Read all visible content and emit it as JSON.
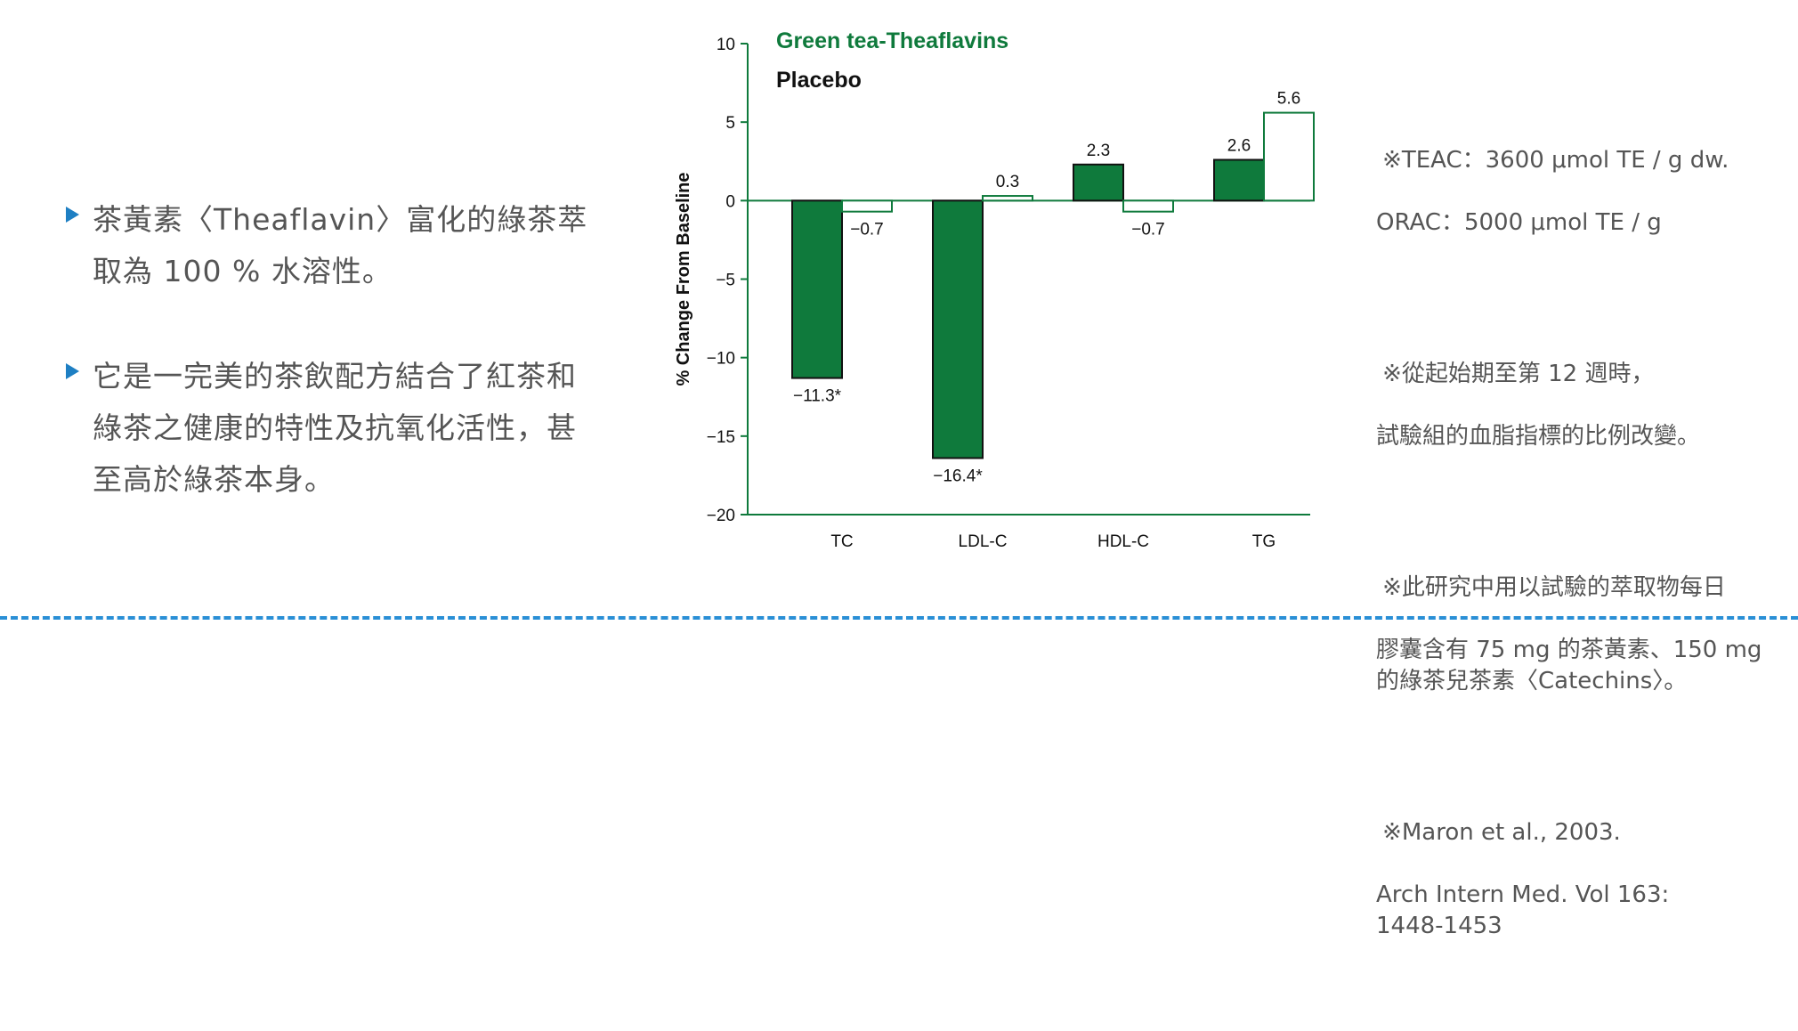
{
  "bullets": [
    {
      "lines": "茶黃素〈Theaflavin〉富化的綠茶萃\n取為 100 % 水溶性。"
    },
    {
      "lines": "它是一完美的茶飲配方結合了紅茶和\n綠茶之健康的特性及抗氧化活性，甚\n至高於綠茶本身。"
    }
  ],
  "notes": [
    {
      "first": "※TEAC：3600 μmol TE / g dw.",
      "rest": "ORAC：5000 μmol TE / g"
    },
    {
      "first": "※從起始期至第 12 週時，",
      "rest": "試驗組的血脂指標的比例改變。"
    },
    {
      "first": "※此研究中用以試驗的萃取物每日",
      "rest": "膠囊含有 75 mg 的茶黃素、150 mg\n的綠茶兒茶素〈Catechins〉。"
    },
    {
      "first": "※Maron et al., 2003.",
      "rest": "Arch Intern Med. Vol 163:\n1448-1453"
    }
  ],
  "chart_data": {
    "type": "bar",
    "categories": [
      "TC",
      "LDL-C",
      "HDL-C",
      "TG"
    ],
    "series": [
      {
        "name": "Green tea-Theaflavins",
        "values": [
          -11.3,
          -16.4,
          2.3,
          2.6
        ],
        "labels": [
          "−11.3*",
          "−16.4*",
          "2.3",
          "2.6"
        ],
        "color": "#0f7a3c"
      },
      {
        "name": "Placebo",
        "values": [
          -0.7,
          0.3,
          -0.7,
          5.6
        ],
        "labels": [
          "−0.7",
          "0.3",
          "−0.7",
          "5.6"
        ],
        "color": "#ffffff"
      }
    ],
    "ylabel": "% Change From Baseline",
    "ylim": [
      -20,
      10
    ],
    "yticks": [
      10,
      5,
      0,
      -5,
      -10,
      -15,
      -20
    ],
    "ytick_labels": [
      "10",
      "5",
      "0",
      "−5",
      "−10",
      "−15",
      "−20"
    ],
    "legend_placement": "top-left",
    "grid": false,
    "colors": {
      "axis": "#0f7a3c",
      "bar_stroke": "#0f7a3c",
      "legend_green": "#0f7a3c",
      "text": "#111111"
    }
  }
}
